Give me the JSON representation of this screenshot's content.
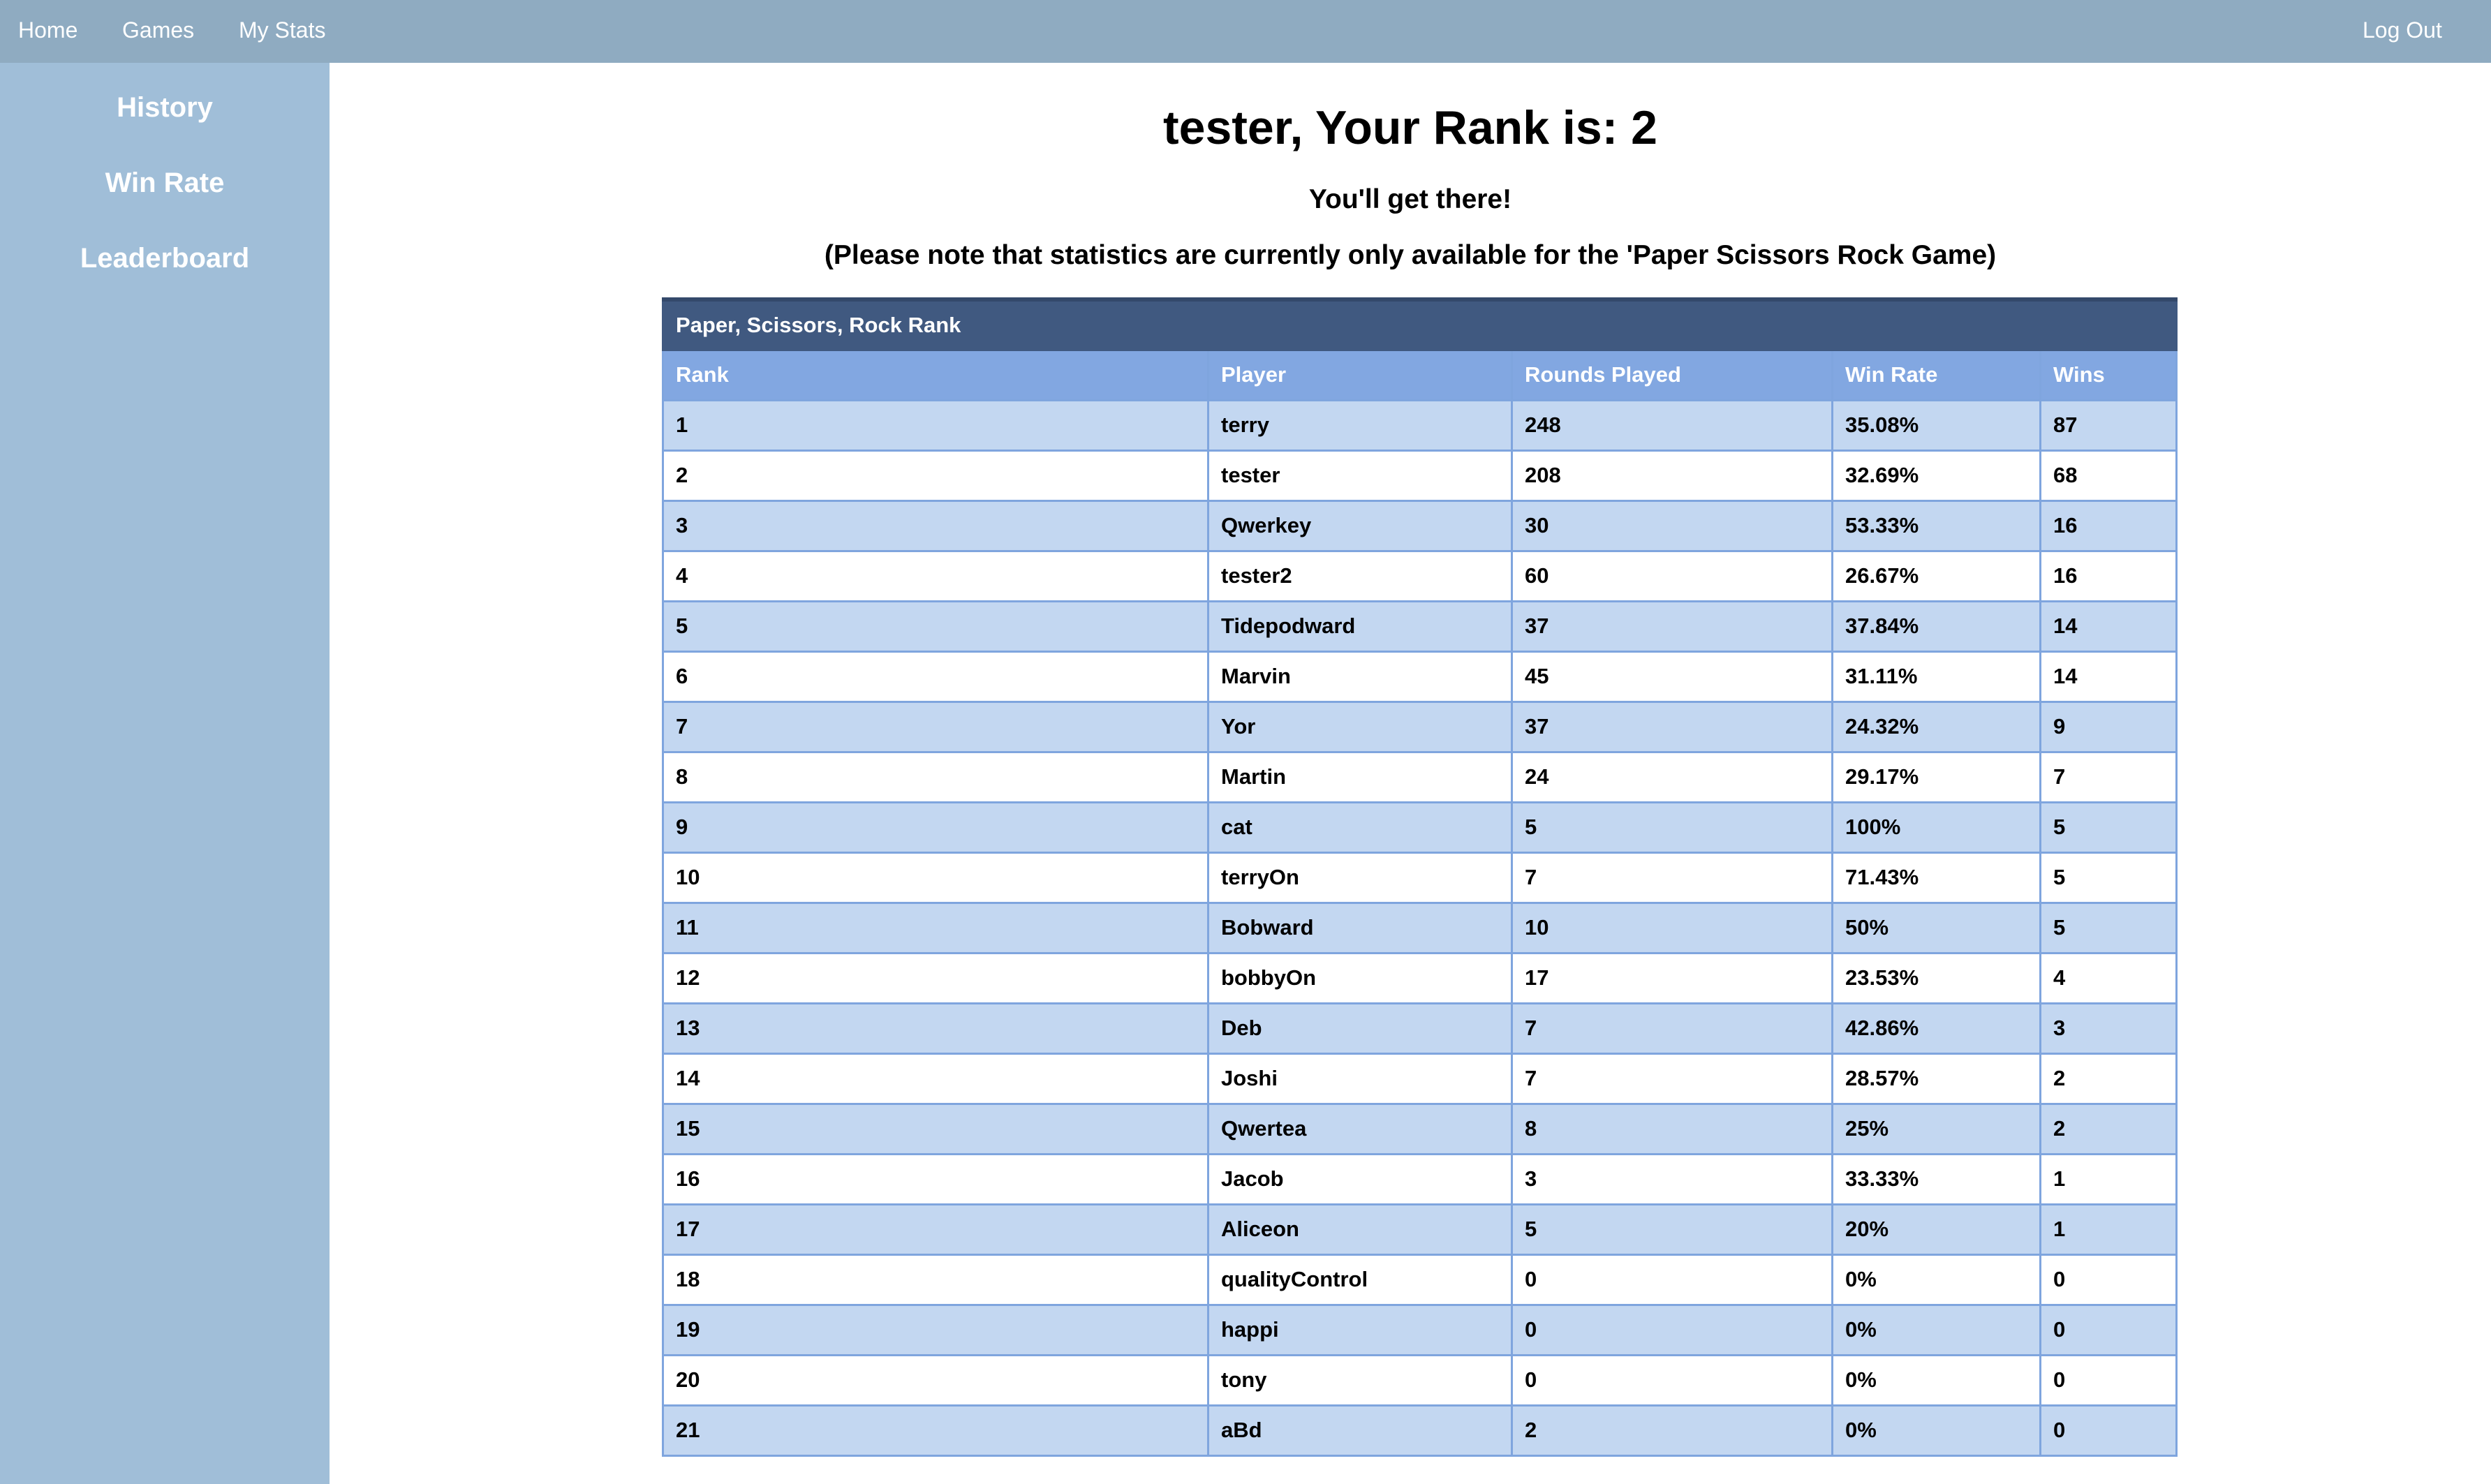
{
  "topnav": {
    "home": "Home",
    "games": "Games",
    "my_stats": "My Stats",
    "logout": "Log Out"
  },
  "sidebar": {
    "items": [
      {
        "label": "History"
      },
      {
        "label": "Win Rate"
      },
      {
        "label": "Leaderboard"
      }
    ]
  },
  "main": {
    "title": "tester, Your Rank is: 2",
    "encouragement": "You'll get there!",
    "note": "(Please note that statistics are currently only available for the 'Paper Scissors Rock Game)"
  },
  "table": {
    "caption": "Paper, Scissors, Rock Rank",
    "headers": [
      "Rank",
      "Player",
      "Rounds Played",
      "Win Rate",
      "Wins"
    ],
    "rows": [
      [
        "1",
        "terry",
        "248",
        "35.08%",
        "87"
      ],
      [
        "2",
        "tester",
        "208",
        "32.69%",
        "68"
      ],
      [
        "3",
        "Qwerkey",
        "30",
        "53.33%",
        "16"
      ],
      [
        "4",
        "tester2",
        "60",
        "26.67%",
        "16"
      ],
      [
        "5",
        "Tidepodward",
        "37",
        "37.84%",
        "14"
      ],
      [
        "6",
        "Marvin",
        "45",
        "31.11%",
        "14"
      ],
      [
        "7",
        "Yor",
        "37",
        "24.32%",
        "9"
      ],
      [
        "8",
        "Martin",
        "24",
        "29.17%",
        "7"
      ],
      [
        "9",
        "cat",
        "5",
        "100%",
        "5"
      ],
      [
        "10",
        "terryOn",
        "7",
        "71.43%",
        "5"
      ],
      [
        "11",
        "Bobward",
        "10",
        "50%",
        "5"
      ],
      [
        "12",
        "bobbyOn",
        "17",
        "23.53%",
        "4"
      ],
      [
        "13",
        "Deb",
        "7",
        "42.86%",
        "3"
      ],
      [
        "14",
        "Joshi",
        "7",
        "28.57%",
        "2"
      ],
      [
        "15",
        "Qwertea",
        "8",
        "25%",
        "2"
      ],
      [
        "16",
        "Jacob",
        "3",
        "33.33%",
        "1"
      ],
      [
        "17",
        "Aliceon",
        "5",
        "20%",
        "1"
      ],
      [
        "18",
        "qualityControl",
        "0",
        "0%",
        "0"
      ],
      [
        "19",
        "happi",
        "0",
        "0%",
        "0"
      ],
      [
        "20",
        "tony",
        "0",
        "0%",
        "0"
      ],
      [
        "21",
        "aBd",
        "2",
        "0%",
        "0"
      ]
    ]
  },
  "colors": {
    "topbar": "#8fabc1",
    "sidebar": "#a0bed8",
    "caption_bg": "#405980",
    "header_bg": "#82a7e1",
    "row_alt": "#c3d7f1"
  }
}
